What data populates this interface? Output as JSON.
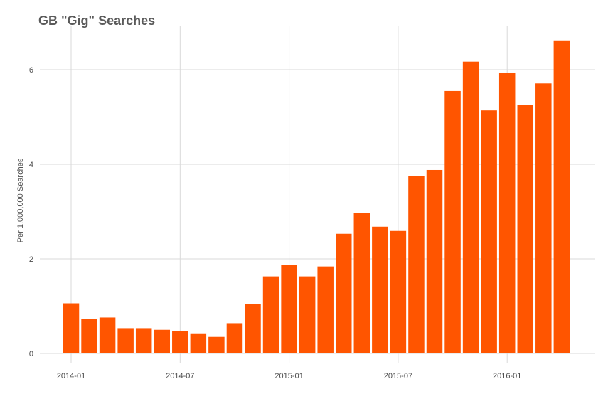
{
  "chart_data": {
    "type": "bar",
    "title": "GB \"Gig\" Searches",
    "xlabel": "",
    "ylabel": "Per 1,000,000 Searches",
    "bar_color": "#ff5500",
    "grid": true,
    "ylim": [
      0,
      6.8
    ],
    "y_ticks": [
      0,
      2,
      4,
      6
    ],
    "y_tick_labels": [
      "0",
      "2",
      "4",
      "6"
    ],
    "x_ticks": [
      "2014-01",
      "2014-07",
      "2015-01",
      "2015-07",
      "2016-01"
    ],
    "categories": [
      "2014-01",
      "2014-02",
      "2014-03",
      "2014-04",
      "2014-05",
      "2014-06",
      "2014-07",
      "2014-08",
      "2014-09",
      "2014-10",
      "2014-11",
      "2014-12",
      "2015-01",
      "2015-02",
      "2015-03",
      "2015-04",
      "2015-05",
      "2015-06",
      "2015-07",
      "2015-08",
      "2015-09",
      "2015-10",
      "2015-11",
      "2015-12",
      "2016-01",
      "2016-02",
      "2016-03",
      "2016-04"
    ],
    "values": [
      1.06,
      0.73,
      0.76,
      0.52,
      0.52,
      0.5,
      0.47,
      0.41,
      0.35,
      0.64,
      1.04,
      1.63,
      1.87,
      1.63,
      1.84,
      2.53,
      2.97,
      2.68,
      2.59,
      3.75,
      3.88,
      5.55,
      6.17,
      5.14,
      5.94,
      5.25,
      5.71,
      6.62
    ]
  }
}
